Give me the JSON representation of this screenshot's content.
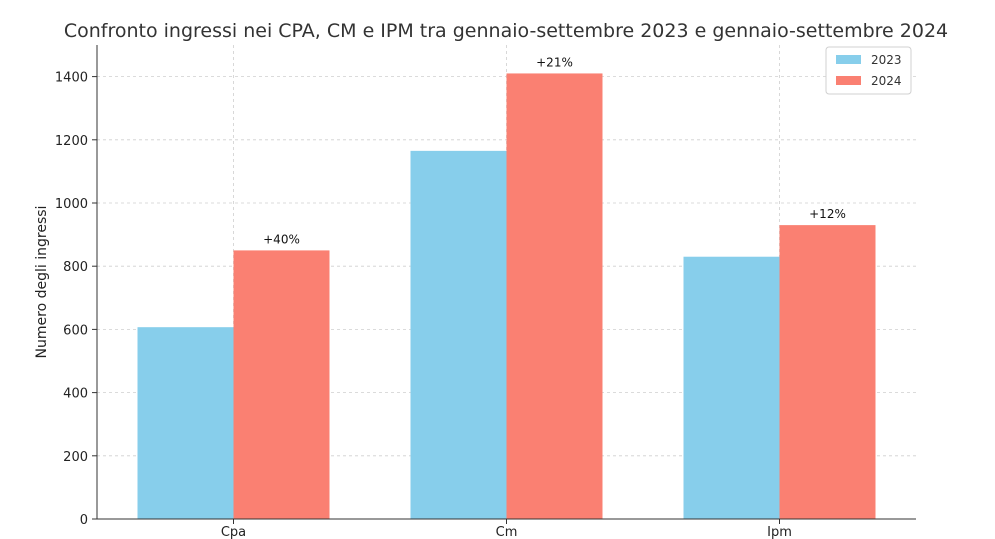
{
  "chart_data": {
    "type": "bar",
    "title": "Confronto ingressi nei CPA, CM e IPM tra gennaio-settembre 2023 e gennaio-settembre 2024",
    "xlabel": "",
    "ylabel": "Numero degli ingressi",
    "categories": [
      "Cpa",
      "Cm",
      "Ipm"
    ],
    "series": [
      {
        "name": "2023",
        "color": "#87CEEB",
        "values": [
          607,
          1165,
          830
        ]
      },
      {
        "name": "2024",
        "color": "#FA8072",
        "values": [
          850,
          1410,
          930
        ]
      }
    ],
    "annotations": [
      "+40%",
      "+21%",
      "+12%"
    ],
    "ylim": [
      0,
      1500
    ],
    "yticks": [
      0,
      200,
      400,
      600,
      800,
      1000,
      1200,
      1400
    ],
    "grid": true,
    "legend_position": "top-right"
  }
}
